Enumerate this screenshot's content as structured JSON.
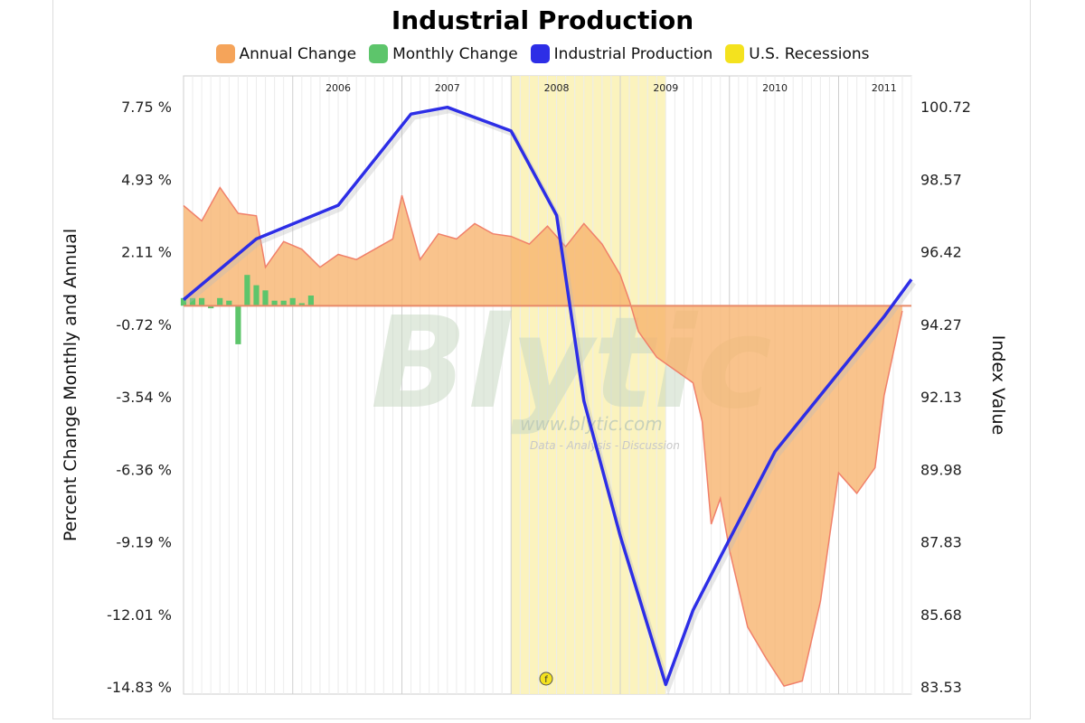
{
  "chart_data": {
    "type": "area",
    "title": "Industrial Production",
    "legend": [
      {
        "label": "Annual Change",
        "color": "#f5a45a"
      },
      {
        "label": "Monthly Change",
        "color": "#5dc56b"
      },
      {
        "label": "Industrial Production",
        "color": "#2d2ee6"
      },
      {
        "label": "U.S. Recessions",
        "color": "#f4e21e"
      }
    ],
    "ylabel_left": "Percent Change Monthly and Annual",
    "ylabel_right": "Index Value",
    "y_left_ticks": [
      "7.75 %",
      "4.93 %",
      "2.11 %",
      "-0.72 %",
      "-3.54 %",
      "-6.36 %",
      "-9.19 %",
      "-12.01 %",
      "-14.83 %"
    ],
    "y_right_ticks": [
      "100.72",
      "98.57",
      "96.42",
      "94.27",
      "92.13",
      "89.98",
      "87.83",
      "85.68",
      "83.53"
    ],
    "ylim_left": [
      -14.83,
      7.75
    ],
    "ylim_right": [
      83.53,
      100.72
    ],
    "year_labels": [
      "2006",
      "2007",
      "2008",
      "2009",
      "2010",
      "2011"
    ],
    "x_range": [
      "2005-01",
      "2011-09"
    ],
    "recession": {
      "start": "2008-01",
      "end": "2009-06"
    },
    "annual_change": [
      [
        "2005-01",
        3.9
      ],
      [
        "2005-03",
        3.3
      ],
      [
        "2005-05",
        4.6
      ],
      [
        "2005-07",
        3.6
      ],
      [
        "2005-09",
        3.5
      ],
      [
        "2005-10",
        1.5
      ],
      [
        "2005-12",
        2.5
      ],
      [
        "2006-02",
        2.2
      ],
      [
        "2006-04",
        1.5
      ],
      [
        "2006-06",
        2.0
      ],
      [
        "2006-08",
        1.8
      ],
      [
        "2006-10",
        2.2
      ],
      [
        "2006-12",
        2.6
      ],
      [
        "2007-01",
        4.3
      ],
      [
        "2007-03",
        1.8
      ],
      [
        "2007-05",
        2.8
      ],
      [
        "2007-07",
        2.6
      ],
      [
        "2007-09",
        3.2
      ],
      [
        "2007-11",
        2.8
      ],
      [
        "2008-01",
        2.7
      ],
      [
        "2008-03",
        2.4
      ],
      [
        "2008-05",
        3.1
      ],
      [
        "2008-07",
        2.3
      ],
      [
        "2008-09",
        3.2
      ],
      [
        "2008-11",
        2.4
      ],
      [
        "2009-01",
        1.2
      ],
      [
        "2009-02",
        0.2
      ],
      [
        "2009-03",
        -1.0
      ],
      [
        "2009-05",
        -2.0
      ],
      [
        "2009-07",
        -2.5
      ],
      [
        "2009-09",
        -3.0
      ],
      [
        "2009-10",
        -4.5
      ],
      [
        "2009-11",
        -8.5
      ],
      [
        "2009-12",
        -7.5
      ],
      [
        "2010-01",
        -9.5
      ],
      [
        "2010-02",
        -11.0
      ],
      [
        "2010-03",
        -12.5
      ],
      [
        "2010-05",
        -13.7
      ],
      [
        "2010-07",
        -14.8
      ],
      [
        "2010-09",
        -14.6
      ],
      [
        "2010-11",
        -11.5
      ],
      [
        "2010-12",
        -9.0
      ],
      [
        "2011-01",
        -6.5
      ],
      [
        "2011-03",
        -7.3
      ],
      [
        "2011-05",
        -6.3
      ],
      [
        "2011-06",
        -3.5
      ],
      [
        "2011-08",
        -0.2
      ]
    ],
    "monthly_change": [
      [
        "2005-01",
        0.3
      ],
      [
        "2005-02",
        0.3
      ],
      [
        "2005-03",
        0.3
      ],
      [
        "2005-04",
        -0.1
      ],
      [
        "2005-05",
        0.3
      ],
      [
        "2005-06",
        0.2
      ],
      [
        "2005-07",
        -1.5
      ],
      [
        "2005-08",
        1.2
      ],
      [
        "2005-09",
        0.8
      ],
      [
        "2005-10",
        0.6
      ],
      [
        "2005-11",
        0.2
      ],
      [
        "2005-12",
        0.2
      ],
      [
        "2006-01",
        0.3
      ],
      [
        "2006-02",
        0.1
      ],
      [
        "2006-03",
        0.4
      ]
    ],
    "industrial_production": [
      [
        "2005-01",
        95.0
      ],
      [
        "2005-09",
        96.8
      ],
      [
        "2006-06",
        97.8
      ],
      [
        "2007-02",
        100.5
      ],
      [
        "2007-06",
        100.7
      ],
      [
        "2008-01",
        100.0
      ],
      [
        "2008-06",
        97.5
      ],
      [
        "2008-09",
        92.0
      ],
      [
        "2009-01",
        88.0
      ],
      [
        "2009-06",
        83.6
      ],
      [
        "2009-09",
        85.8
      ],
      [
        "2010-01",
        87.9
      ],
      [
        "2010-06",
        90.5
      ],
      [
        "2010-12",
        92.5
      ],
      [
        "2011-06",
        94.5
      ],
      [
        "2011-09",
        95.6
      ]
    ]
  },
  "watermark": {
    "brand": "Blytic",
    "url": "www.blytic.com",
    "tagline": "Data - Analysis - Discussion"
  },
  "marker_label": "f"
}
